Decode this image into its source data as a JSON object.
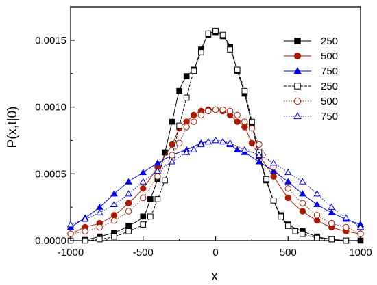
{
  "chart_data": {
    "type": "line",
    "xlabel": "x",
    "ylabel": "P(x,t|0)",
    "xlim": [
      -1000,
      1000
    ],
    "ylim": [
      0,
      0.00175
    ],
    "xticks": [
      -1000,
      -500,
      0,
      500,
      1000
    ],
    "xtick_labels": [
      "-1000",
      "-500",
      "0",
      "500",
      "1000"
    ],
    "yticks": [
      0,
      0.0005,
      0.001,
      0.0015
    ],
    "ytick_labels": [
      "0.0000",
      "0.0005",
      "0.0010",
      "0.0015"
    ],
    "grid": false,
    "legend_position": "top-right",
    "series": [
      {
        "name": "250",
        "color": "#000000",
        "marker": "square",
        "filled": true,
        "line": "solid",
        "x": [
          -900,
          -800,
          -700,
          -600,
          -500,
          -450,
          -400,
          -350,
          -300,
          -250,
          -200,
          -150,
          -100,
          -50,
          0,
          50,
          100,
          150,
          200,
          250,
          300,
          350,
          400,
          450,
          500,
          600,
          700,
          800,
          900,
          1000
        ],
        "y": [
          5e-06,
          3e-05,
          6e-05,
          0.00011,
          0.00018,
          0.00031,
          0.00046,
          0.00066,
          0.00089,
          0.00112,
          0.00123,
          0.00128,
          0.00143,
          0.00154,
          0.00156,
          0.00153,
          0.00145,
          0.00127,
          0.0011,
          0.00087,
          0.00063,
          0.00045,
          0.0003,
          0.00019,
          0.00012,
          7e-05,
          3e-05,
          1e-05,
          0.0,
          0.0
        ]
      },
      {
        "name": "500",
        "color": "#aa1a00",
        "marker": "circle",
        "filled": true,
        "line": "solid",
        "x": [
          -1000,
          -900,
          -800,
          -700,
          -600,
          -500,
          -400,
          -300,
          -250,
          -200,
          -150,
          -100,
          -50,
          0,
          50,
          100,
          150,
          200,
          250,
          300,
          400,
          500,
          600,
          700,
          800,
          900,
          1000
        ],
        "y": [
          5e-05,
          0.0001,
          0.00013,
          0.00019,
          0.00028,
          0.00039,
          0.00055,
          0.00072,
          0.00084,
          0.00089,
          0.00094,
          0.00097,
          0.00098,
          0.00098,
          0.00097,
          0.00094,
          0.00089,
          0.00085,
          0.00073,
          0.00064,
          0.00048,
          0.00032,
          0.00022,
          0.00015,
          0.0001,
          7e-05,
          5e-05
        ]
      },
      {
        "name": "750",
        "color": "#0000ee",
        "marker": "triangle",
        "filled": true,
        "line": "solid",
        "x": [
          -1000,
          -900,
          -800,
          -700,
          -600,
          -500,
          -400,
          -300,
          -200,
          -100,
          -50,
          0,
          50,
          100,
          150,
          200,
          300,
          400,
          500,
          600,
          700,
          800,
          900,
          1000
        ],
        "y": [
          0.0001,
          0.00017,
          0.00025,
          0.00035,
          0.00044,
          0.00051,
          0.00058,
          0.00064,
          0.00068,
          0.00073,
          0.00074,
          0.00075,
          0.00074,
          0.00072,
          0.00068,
          0.00066,
          0.00059,
          0.00052,
          0.00044,
          0.00035,
          0.00027,
          0.00021,
          0.00016,
          0.00012
        ]
      },
      {
        "name": "250",
        "color": "#000000",
        "marker": "square",
        "filled": false,
        "line": "dashed",
        "x": [
          -1000,
          -900,
          -800,
          -700,
          -600,
          -500,
          -450,
          -400,
          -350,
          -300,
          -250,
          -200,
          -150,
          -100,
          -50,
          0,
          50,
          100,
          150,
          200,
          250,
          300,
          350,
          400,
          450,
          500,
          550,
          600,
          700,
          800,
          900
        ],
        "y": [
          0.0,
          0.0,
          1e-05,
          3e-05,
          7e-05,
          0.00012,
          0.00018,
          0.00031,
          0.00045,
          0.00063,
          0.00086,
          0.00107,
          0.00127,
          0.00141,
          0.00155,
          0.00157,
          0.00154,
          0.00143,
          0.00128,
          0.00112,
          0.00089,
          0.00066,
          0.00046,
          0.0003,
          0.00018,
          0.00011,
          7e-05,
          5e-05,
          2e-05,
          1e-05,
          0.0
        ]
      },
      {
        "name": "500",
        "color": "#aa1a00",
        "marker": "circle",
        "filled": false,
        "line": "dotted",
        "x": [
          -1000,
          -900,
          -800,
          -700,
          -600,
          -500,
          -400,
          -300,
          -250,
          -200,
          -150,
          -100,
          -50,
          0,
          50,
          100,
          150,
          200,
          250,
          300,
          400,
          500,
          600,
          700,
          800,
          900,
          1000
        ],
        "y": [
          5e-05,
          7e-05,
          0.0001,
          0.00015,
          0.00022,
          0.00032,
          0.00048,
          0.00064,
          0.00073,
          0.00085,
          0.00089,
          0.00094,
          0.00097,
          0.00098,
          0.00098,
          0.00097,
          0.00094,
          0.00089,
          0.00084,
          0.00072,
          0.00055,
          0.00039,
          0.00028,
          0.00019,
          0.00013,
          0.0001,
          5e-05
        ]
      },
      {
        "name": "750",
        "color": "#0000ee",
        "marker": "triangle",
        "filled": false,
        "line": "dotted",
        "x": [
          -1000,
          -900,
          -800,
          -700,
          -600,
          -500,
          -400,
          -300,
          -200,
          -150,
          -100,
          -50,
          0,
          50,
          100,
          200,
          300,
          400,
          500,
          600,
          700,
          800,
          900,
          1000
        ],
        "y": [
          0.00012,
          0.00016,
          0.00021,
          0.00027,
          0.00035,
          0.00044,
          0.00052,
          0.00059,
          0.00066,
          0.00068,
          0.00072,
          0.00074,
          0.00075,
          0.00074,
          0.00073,
          0.00068,
          0.00064,
          0.00058,
          0.00051,
          0.00044,
          0.00035,
          0.00025,
          0.00017,
          0.0001
        ]
      }
    ]
  }
}
